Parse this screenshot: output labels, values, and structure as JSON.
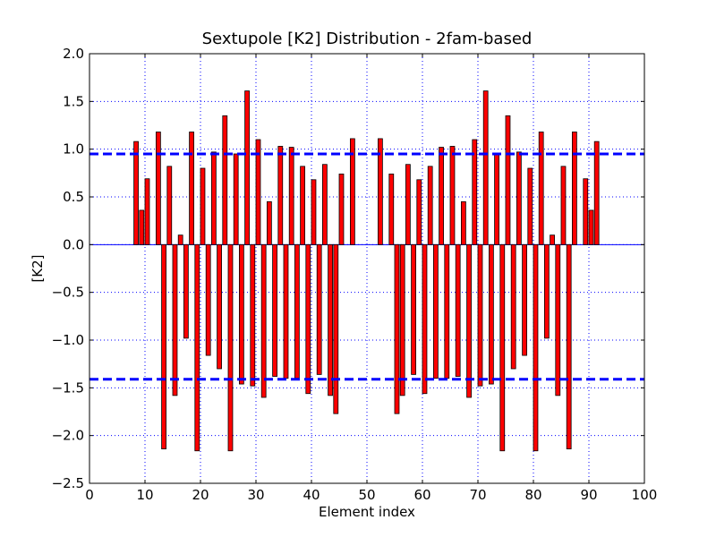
{
  "chart_data": {
    "type": "bar",
    "title": "Sextupole [K2] Distribution - 2fam-based",
    "xlabel": "Element index",
    "ylabel": "[K2]",
    "xlim": [
      0,
      100
    ],
    "ylim": [
      -2.5,
      2.0
    ],
    "xticks": [
      0,
      10,
      20,
      30,
      40,
      50,
      60,
      70,
      80,
      90,
      100
    ],
    "yticks": [
      2.0,
      1.5,
      1.0,
      0.5,
      0.0,
      -0.5,
      -1.0,
      -1.5,
      -2.0,
      -2.5
    ],
    "xtick_labels": [
      "0",
      "10",
      "20",
      "30",
      "40",
      "50",
      "60",
      "70",
      "80",
      "90",
      "100"
    ],
    "ytick_labels": [
      "2.0",
      "1.5",
      "1.0",
      "0.5",
      "0.0",
      "−0.5",
      "−1.0",
      "−1.5",
      "−2.0",
      "−2.5"
    ],
    "grid": true,
    "bar_color": "#ff0000",
    "bar_width": 0.8,
    "zero_line_color": "#0000ff",
    "reference_lines": [
      {
        "y": 0.95,
        "style": "dashed",
        "color": "#0000ff"
      },
      {
        "y": -1.41,
        "style": "dashed",
        "color": "#0000ff"
      }
    ],
    "x": [
      8,
      9,
      10,
      12,
      13,
      14,
      15,
      16,
      17,
      18,
      19,
      20,
      21,
      22,
      23,
      24,
      25,
      26,
      27,
      28,
      29,
      30,
      31,
      32,
      33,
      34,
      35,
      36,
      37,
      38,
      39,
      40,
      41,
      42,
      43,
      44,
      45,
      47,
      52,
      54,
      55,
      56,
      57,
      58,
      59,
      60,
      61,
      62,
      63,
      64,
      65,
      66,
      67,
      68,
      69,
      70,
      71,
      72,
      73,
      74,
      75,
      76,
      77,
      78,
      79,
      80,
      81,
      82,
      83,
      84,
      85,
      86,
      87,
      89,
      90,
      91
    ],
    "values": [
      1.08,
      0.36,
      0.69,
      1.18,
      -2.14,
      0.82,
      -1.58,
      0.1,
      -0.98,
      1.18,
      -2.16,
      0.8,
      -1.16,
      0.97,
      -1.3,
      1.35,
      -2.16,
      0.95,
      -1.46,
      1.61,
      -1.48,
      1.1,
      -1.6,
      0.45,
      -1.38,
      1.03,
      -1.4,
      1.02,
      -1.4,
      0.82,
      -1.56,
      0.68,
      -1.36,
      0.84,
      -1.58,
      -1.77,
      0.74,
      1.11,
      1.11,
      0.74,
      -1.77,
      -1.58,
      0.84,
      -1.36,
      0.68,
      -1.56,
      0.82,
      -1.4,
      1.02,
      -1.4,
      1.03,
      -1.38,
      0.45,
      -1.6,
      1.1,
      -1.48,
      1.61,
      -1.46,
      0.95,
      -2.16,
      1.35,
      -1.3,
      0.97,
      -1.16,
      0.8,
      -2.16,
      1.18,
      -0.98,
      0.1,
      -1.58,
      0.82,
      -2.14,
      1.18,
      0.69,
      0.36,
      1.08
    ]
  }
}
